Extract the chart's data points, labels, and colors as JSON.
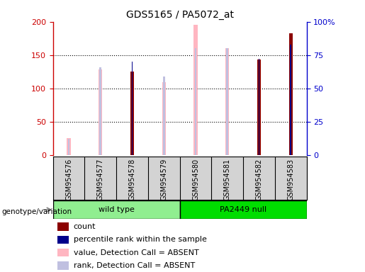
{
  "title": "GDS5165 / PA5072_at",
  "samples": [
    "GSM954576",
    "GSM954577",
    "GSM954578",
    "GSM954579",
    "GSM954580",
    "GSM954581",
    "GSM954582",
    "GSM954583"
  ],
  "count": [
    0,
    0,
    125,
    0,
    0,
    0,
    143,
    183
  ],
  "percentile_rank": [
    0,
    0,
    70,
    0,
    0,
    0,
    72,
    83
  ],
  "absent_value": [
    25,
    128,
    0,
    109,
    195,
    160,
    0,
    0
  ],
  "absent_rank": [
    12,
    66,
    0,
    59,
    80,
    80,
    0,
    0
  ],
  "groups": [
    {
      "label": "wild type",
      "start": 0,
      "end": 4,
      "color": "#90EE90"
    },
    {
      "label": "PA2449 null",
      "start": 4,
      "end": 8,
      "color": "#00DD00"
    }
  ],
  "left_yticks": [
    0,
    50,
    100,
    150,
    200
  ],
  "right_yticks": [
    0,
    25,
    50,
    75,
    100
  ],
  "right_yticklabels": [
    "0",
    "25",
    "50",
    "75",
    "100%"
  ],
  "ylim": [
    0,
    200
  ],
  "right_ylim": [
    0,
    100
  ],
  "left_yaxis_color": "#CC0000",
  "right_yaxis_color": "#0000CC",
  "color_count": "#8B0000",
  "color_percentile": "#00008B",
  "color_absent_value": "#FFB6C1",
  "color_absent_rank": "#C0C0E0",
  "bg_color": "#D3D3D3",
  "group_bg": "#D3D3D3",
  "legend_items": [
    {
      "color": "#8B0000",
      "label": "count"
    },
    {
      "color": "#00008B",
      "label": "percentile rank within the sample"
    },
    {
      "color": "#FFB6C1",
      "label": "value, Detection Call = ABSENT"
    },
    {
      "color": "#C0C0E0",
      "label": "rank, Detection Call = ABSENT"
    }
  ]
}
